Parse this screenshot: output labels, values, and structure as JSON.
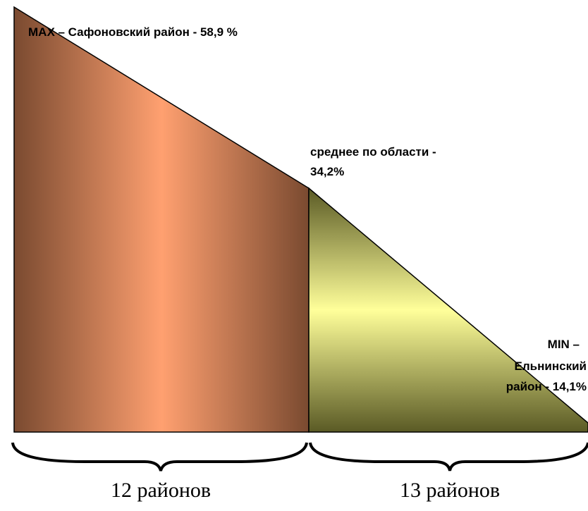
{
  "max_label": "MAX – Сафоновский район - 58,9 %",
  "average_label": [
    "среднее по области -",
    "34,2%"
  ],
  "min_label": [
    "MIN –",
    "Ельнинский",
    "район - 14,1%"
  ],
  "groups": [
    "12 районов",
    "13 районов"
  ]
}
